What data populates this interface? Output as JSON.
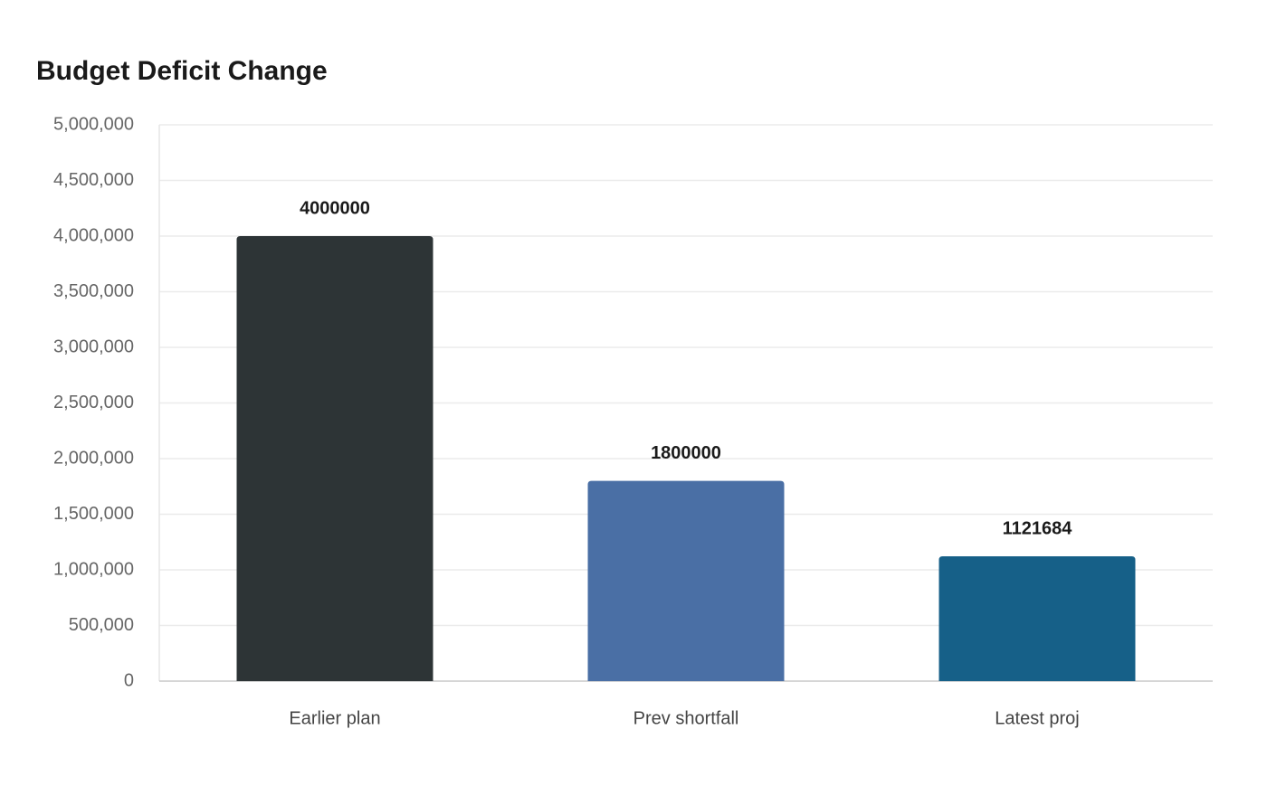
{
  "chart_data": {
    "type": "bar",
    "title": "Budget Deficit Change",
    "categories": [
      "Earlier plan",
      "Prev shortfall",
      "Latest proj"
    ],
    "values": [
      4000000,
      1800000,
      1121684
    ],
    "colors": [
      "#2d3436",
      "#4a6fa5",
      "#166088"
    ],
    "ylim": [
      0,
      5000000
    ],
    "yticks": [
      0,
      {
        "value": 500000,
        "label": "500,000"
      },
      {
        "value": 1000000,
        "label": "1,000,000"
      },
      {
        "value": 1500000,
        "label": "1,500,000"
      },
      {
        "value": 2000000,
        "label": "2,000,000"
      },
      {
        "value": 2500000,
        "label": "2,500,000"
      },
      {
        "value": 3000000,
        "label": "3,000,000"
      },
      {
        "value": 3500000,
        "label": "3,500,000"
      },
      {
        "value": 4000000,
        "label": "4,000,000"
      },
      {
        "value": 4500000,
        "label": "4,500,000"
      },
      {
        "value": 5000000,
        "label": "5,000,000"
      }
    ],
    "grid": true
  }
}
